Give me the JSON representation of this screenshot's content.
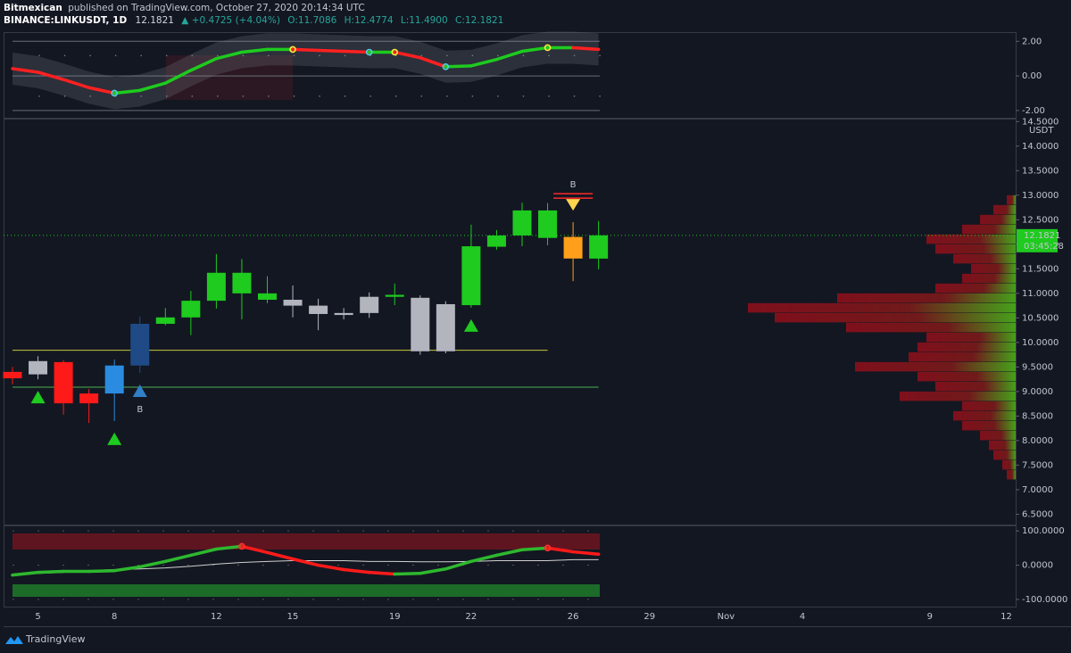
{
  "header": {
    "user": "Bitmexican",
    "published": "published on TradingView.com, October 27, 2020 20:14:34 UTC",
    "symbol": "BINANCE:LINKUSDT, 1D",
    "price": "12.1821",
    "change": "▲ +0.4725 (+4.04%)",
    "open": "O:11.7086",
    "high": "H:12.4774",
    "low": "L:11.4900",
    "close": "C:12.1821"
  },
  "chart_data": [
    {
      "type": "line",
      "ylim": [
        -2.42,
        2.53
      ],
      "yticks": [
        {
          "value": 2,
          "label": "2.00"
        },
        {
          "value": 0,
          "label": "0.00"
        },
        {
          "value": -2,
          "label": "-2.00"
        }
      ],
      "values": [
        0.42,
        0.21,
        -0.21,
        -0.68,
        -1.0,
        -0.84,
        -0.42,
        0.32,
        1.0,
        1.37,
        1.53,
        1.53,
        1.47,
        1.42,
        1.37,
        1.37,
        1.05,
        0.53,
        0.58,
        0.95,
        1.42,
        1.63,
        1.63,
        1.53
      ],
      "up_color": "#1ecb1e",
      "down_color": "#ff2020",
      "markers": [
        {
          "index": 4,
          "color": "#4dd0e1"
        },
        {
          "index": 11,
          "color": "#ffeb3b"
        },
        {
          "index": 14,
          "color": "#4dd0e1"
        },
        {
          "index": 15,
          "color": "#ffeb3b"
        },
        {
          "index": 17,
          "color": "#4dd0e1"
        },
        {
          "index": 21,
          "color": "#ffeb3b"
        }
      ]
    },
    {
      "type": "candlestick",
      "ylim": [
        6.29,
        14.56
      ],
      "y_unit": "USDT",
      "yticks": [
        {
          "value": 6.5,
          "label": "6.5000"
        },
        {
          "value": 7,
          "label": "7.0000"
        },
        {
          "value": 7.5,
          "label": "7.5000"
        },
        {
          "value": 8,
          "label": "8.0000"
        },
        {
          "value": 8.5,
          "label": "8.5000"
        },
        {
          "value": 9,
          "label": "9.0000"
        },
        {
          "value": 9.5,
          "label": "9.5000"
        },
        {
          "value": 10,
          "label": "10.0000"
        },
        {
          "value": 10.5,
          "label": "10.5000"
        },
        {
          "value": 11,
          "label": "11.0000"
        },
        {
          "value": 11.5,
          "label": "11.5000"
        },
        {
          "value": 12,
          "label": "12.0000"
        },
        {
          "value": 12.5,
          "label": "12.5000"
        },
        {
          "value": 13,
          "label": "13.0000"
        },
        {
          "value": 13.5,
          "label": "13.5000"
        },
        {
          "value": 14,
          "label": "14.0000"
        },
        {
          "value": 14.5,
          "label": "14.5000"
        }
      ],
      "categories": [
        null,
        "5",
        null,
        null,
        "8",
        null,
        null,
        null,
        "12",
        null,
        null,
        "15",
        null,
        null,
        null,
        "19",
        null,
        null,
        "22",
        null,
        null,
        null,
        "26",
        null,
        null,
        "29",
        null,
        null,
        "Nov",
        null,
        null,
        "4",
        null,
        null,
        null,
        null,
        "9",
        null,
        null,
        "12"
      ],
      "open": [
        9.4,
        9.35,
        9.6,
        8.96,
        8.96,
        9.53,
        10.38,
        10.51,
        10.85,
        11.42,
        11.0,
        10.87,
        10.75,
        10.6,
        10.6,
        10.93,
        10.91,
        9.82,
        10.76,
        11.95,
        12.18,
        12.69,
        12.15,
        11.7086,
        null,
        null,
        null,
        null,
        null,
        null,
        null,
        null,
        null,
        null,
        null,
        null,
        null,
        null,
        null,
        null
      ],
      "high": [
        9.5,
        9.72,
        9.64,
        9.05,
        9.65,
        10.53,
        10.7,
        11.05,
        11.8,
        11.7,
        11.35,
        11.16,
        10.89,
        10.7,
        11.02,
        11.2,
        10.96,
        10.84,
        12.4,
        12.29,
        12.85,
        12.84,
        12.45,
        12.4774,
        null,
        null,
        null,
        null,
        null,
        null,
        null,
        null,
        null,
        null,
        null,
        null,
        null,
        null,
        null,
        null
      ],
      "low": [
        9.15,
        9.25,
        8.53,
        8.36,
        8.4,
        9.38,
        10.35,
        10.15,
        10.69,
        10.47,
        10.8,
        10.51,
        10.25,
        10.47,
        10.5,
        10.76,
        9.75,
        9.78,
        10.71,
        11.89,
        11.96,
        11.98,
        11.25,
        11.49,
        null,
        null,
        null,
        null,
        null,
        null,
        null,
        null,
        null,
        null,
        null,
        null,
        null,
        null,
        null,
        null
      ],
      "close": [
        9.27,
        9.62,
        8.76,
        8.76,
        9.53,
        10.38,
        10.51,
        10.85,
        11.42,
        11.0,
        10.87,
        10.75,
        10.58,
        10.56,
        10.93,
        10.97,
        9.82,
        10.78,
        11.96,
        12.18,
        12.69,
        12.13,
        11.71,
        12.1821,
        null,
        null,
        null,
        null,
        null,
        null,
        null,
        null,
        null,
        null,
        null,
        null,
        null,
        null,
        null,
        null
      ],
      "colors": [
        "#ff1a1a",
        "#b2b5be",
        "#ff1a1a",
        "#ff1a1a",
        "#2a8be0",
        "#1f4a85",
        "#1ecb1e",
        "#1ecb1e",
        "#1ecb1e",
        "#1ecb1e",
        "#1ecb1e",
        "#b2b5be",
        "#b2b5be",
        "#b2b5be",
        "#b2b5be",
        "#1ecb1e",
        "#b2b5be",
        "#b2b5be",
        "#1ecb1e",
        "#1ecb1e",
        "#1ecb1e",
        "#1ecb1e",
        "#ff9f1a",
        "#1ecb1e"
      ],
      "levels": [
        {
          "value": 9.84,
          "color": "#c8c83c"
        },
        {
          "value": 9.09,
          "color": "#4caf50"
        }
      ],
      "signals": [
        {
          "index": 1,
          "direction": "up",
          "color": "#1ecb1e"
        },
        {
          "index": 4,
          "direction": "up",
          "color": "#1ecb1e"
        },
        {
          "index": 5,
          "direction": "up",
          "color": "#2f80c8",
          "label": "B"
        },
        {
          "index": 18,
          "direction": "up",
          "color": "#1ecb1e"
        },
        {
          "index": 22,
          "direction": "down",
          "color": "#ffd54f",
          "label": "B"
        }
      ],
      "last_price_label": "12.1821",
      "countdown": "03:45:28",
      "volume_profile": {
        "prices": [
          7.3,
          7.5,
          7.7,
          7.9,
          8.1,
          8.3,
          8.5,
          8.7,
          8.9,
          9.1,
          9.3,
          9.5,
          9.7,
          9.9,
          10.1,
          10.3,
          10.5,
          10.7,
          10.9,
          11.1,
          11.3,
          11.5,
          11.7,
          11.9,
          12.1,
          12.3,
          12.5,
          12.7,
          12.9
        ],
        "values": [
          10,
          15,
          25,
          30,
          40,
          60,
          70,
          60,
          130,
          90,
          110,
          180,
          120,
          110,
          100,
          190,
          270,
          300,
          200,
          90,
          60,
          50,
          70,
          90,
          100,
          60,
          40,
          25,
          10
        ]
      }
    },
    {
      "type": "line",
      "ylim": [
        -121,
        116
      ],
      "yticks": [
        {
          "value": 100,
          "label": "100.0000"
        },
        {
          "value": 0,
          "label": "0.0000"
        },
        {
          "value": -100,
          "label": "-100.0000"
        }
      ],
      "values": [
        -29,
        -21,
        -18,
        -18,
        -16,
        -5,
        11,
        29,
        47,
        55,
        37,
        18,
        0,
        -13,
        -21,
        -26,
        -24,
        -11,
        11,
        29,
        45,
        50,
        39,
        32
      ],
      "signal_values": [
        -29,
        -24,
        -21,
        -16,
        -13,
        -11,
        -8,
        -3,
        3,
        8,
        11,
        13,
        13,
        13,
        11,
        11,
        10,
        10,
        11,
        13,
        13,
        13,
        16,
        16
      ],
      "up_color": "#2eb82e",
      "down_color": "#ff1a1a",
      "signal_color": "#d0d0d0",
      "markers": [
        {
          "index": 9,
          "color": "#ff3030"
        },
        {
          "index": 21,
          "color": "#ff3030"
        }
      ]
    }
  ],
  "footer": {
    "brand": "TradingView"
  }
}
